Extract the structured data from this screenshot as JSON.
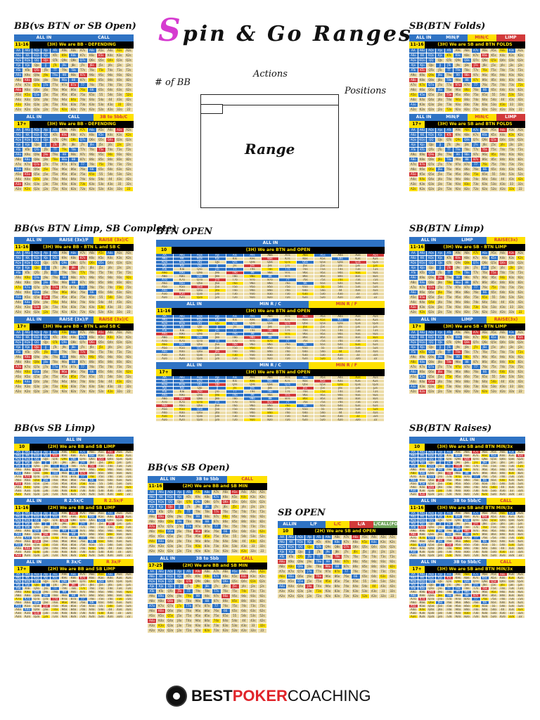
{
  "title": {
    "first_letter": "S",
    "rest": "pin & Go Ranges"
  },
  "legend": {
    "bb": "# of BB",
    "actions": "Actions",
    "positions": "Positions",
    "range": "Range"
  },
  "logo": {
    "part1": "BEST",
    "part2": "POKER",
    "part3": "COACHING"
  },
  "colors": {
    "allin": "#2f73c4",
    "call": "#2f73c4",
    "yellow": "#ffe100",
    "red": "#d23a3a",
    "green": "#6fa55b",
    "fold": "#ecdca8"
  },
  "sections": [
    {
      "heading": "BB(vs BTN or SB Open)",
      "charts": [
        {
          "bar": [
            "ALL IN",
            "CALL"
          ],
          "n": "11-16",
          "t": "(3H) We are BB - DEFENDING"
        },
        {
          "bar": [
            "ALL IN",
            "CALL",
            "3B to 5bb/C"
          ],
          "n": "17+",
          "t": "(3H) We are BB - DEFENDING"
        }
      ]
    },
    {
      "heading": "SB(BTN Folds)",
      "charts": [
        {
          "bar": [
            "ALL IN",
            "MIN/F",
            "MIN/C",
            "LIMP"
          ],
          "n": "11-16",
          "t": "(3H) We are SB and BTN FOLDS"
        },
        {
          "bar": [
            "ALL IN",
            "MIN/F",
            "MIN/C",
            "LIMP"
          ],
          "n": "17+",
          "t": "(3H) We are SB and BTN FOLDS"
        }
      ]
    },
    {
      "heading": "BB(vs BTN Limp, SB Complete)",
      "charts": [
        {
          "bar": [
            "ALL IN",
            "RAISE (3x)/F",
            "RAISE (3x)/C"
          ],
          "n": "11-16",
          "t": "(3H) We are BB - BTN L and SB C"
        },
        {
          "bar": [
            "ALL IN",
            "RAISE (3x)/F",
            "RAISE (3x)/C"
          ],
          "n": "17+",
          "t": "(3H) We are BB - BTN L and SB C"
        }
      ]
    },
    {
      "heading": "BTN OPEN",
      "charts": [
        {
          "bar": [
            "ALL IN"
          ],
          "n": "10",
          "t": "(3H) We are BTN and OPEN"
        },
        {
          "bar": [
            "ALL IN",
            "MIN R / C",
            "MIN R / F"
          ],
          "n": "11-16",
          "t": "(3H) We are BTN and OPEN"
        },
        {
          "bar": [
            "ALL IN",
            "MIN R / C",
            "MIN R / F"
          ],
          "n": "17+",
          "t": "(3H) We are BTN and OPEN"
        }
      ]
    },
    {
      "heading": "SB(BTN Limp)",
      "charts": [
        {
          "bar": [
            "ALL IN",
            "LIMP",
            "RAISE(3x)"
          ],
          "n": "11-16",
          "t": "(3H) We are SB - BTN LIMP"
        },
        {
          "bar": [
            "ALL IN",
            "LIMP",
            "RAISE(3x)"
          ],
          "n": "17+",
          "t": "(3H) We are SB - BTN LIMP"
        }
      ]
    },
    {
      "heading": "BB(vs SB Limp)",
      "charts": [
        {
          "bar": [
            "ALL IN"
          ],
          "n": "10",
          "t": "(2H) We are BB and SB LIMP"
        },
        {
          "bar": [
            "ALL IN",
            "R 2.5x/C",
            "R 2.5x/F"
          ],
          "n": "11-16",
          "t": "(2H) We are BB and SB LIMP"
        },
        {
          "bar": [
            "ALL IN",
            "R 3x/C",
            "R 3x/F"
          ],
          "n": "17+",
          "t": "(2H) We are BB and SB LIMP"
        }
      ]
    },
    {
      "heading": "BB(vs SB Open)",
      "charts": [
        {
          "bar": [
            "ALL IN",
            "3B to 5bb",
            "CALL"
          ],
          "n": "11-16",
          "t": "(2H) We are BB and SB MIN"
        },
        {
          "bar": [
            "ALL IN",
            "3B to 5bb",
            "CALL"
          ],
          "n": "17-25",
          "t": "(2H) We are BB and SB MIN"
        }
      ]
    },
    {
      "heading": "SB OPEN",
      "charts": [
        {
          "bar": [
            "ALLIN",
            "L/F",
            "L/C",
            "L/A",
            "L/CALL(FOLD)/ALLIN"
          ],
          "n": "10",
          "t": "(2H) We are SB and OPEN"
        }
      ]
    },
    {
      "heading": "SB(BTN Raises)",
      "charts": [
        {
          "bar": [
            "ALL IN"
          ],
          "n": "10",
          "t": "(3H) We are SB and BTN MIN/3x"
        },
        {
          "bar": [
            "ALL IN",
            "3B to 5bb/C",
            "CALL"
          ],
          "n": "11-16",
          "t": "(3H) We are SB and BTN MIN/3x"
        },
        {
          "bar": [
            "ALL IN",
            "3B to 5bb/C",
            "CALL"
          ],
          "n": "17+",
          "t": "(3H) We are SB and BTN MIN/3x"
        }
      ]
    }
  ]
}
